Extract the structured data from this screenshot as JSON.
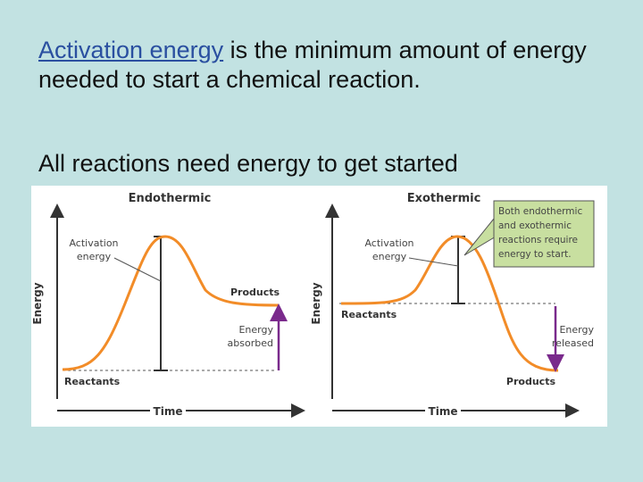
{
  "slide": {
    "term": "Activation energy",
    "definition": " is the minimum amount of energy needed to start a chemical reaction.",
    "subheading": "All reactions need energy to get started"
  },
  "endothermic": {
    "title": "Endothermic",
    "y_axis": "Energy",
    "x_axis": "Time",
    "activation_label_1": "Activation",
    "activation_label_2": "energy",
    "products": "Products",
    "reactants": "Reactants",
    "energy_label_1": "Energy",
    "energy_label_2": "absorbed"
  },
  "exothermic": {
    "title": "Exothermic",
    "y_axis": "Energy",
    "x_axis": "Time",
    "activation_label_1": "Activation",
    "activation_label_2": "energy",
    "reactants": "Reactants",
    "products": "Products",
    "energy_label_1": "Energy",
    "energy_label_2": "released"
  },
  "callout": {
    "lines": [
      "Both endothermic",
      "and exothermic",
      "reactions require",
      "energy to start."
    ]
  },
  "colors": {
    "curve": "#f28c28",
    "bar": "#333333",
    "energy_arrow": "#7a2a8c",
    "axis": "#333333",
    "callout_bg": "#c8dfa0"
  }
}
